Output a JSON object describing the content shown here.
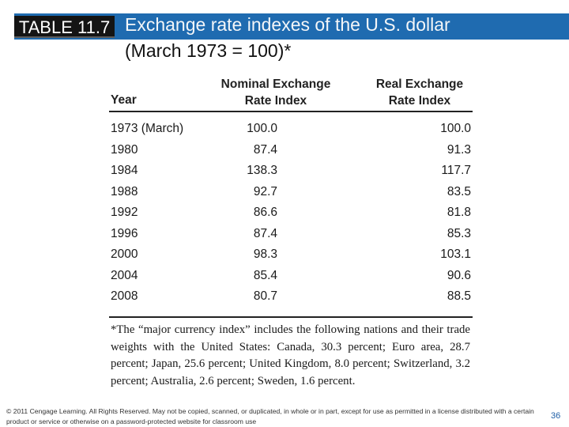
{
  "slide": {
    "table_label": "TABLE 11.7",
    "title_line1": "Exchange rate indexes of the U.S. dollar",
    "title_line2": "(March 1973 = 100)*"
  },
  "table": {
    "headers": {
      "year": "Year",
      "nominal_line1": "Nominal Exchange",
      "nominal_line2": "Rate Index",
      "real_line1": "Real Exchange",
      "real_line2": "Rate Index"
    },
    "rows": [
      {
        "year": "1973 (March)",
        "nominal": "100.0",
        "real": "100.0"
      },
      {
        "year": "1980",
        "nominal": "87.4",
        "real": "91.3"
      },
      {
        "year": "1984",
        "nominal": "138.3",
        "real": "117.7"
      },
      {
        "year": "1988",
        "nominal": "92.7",
        "real": "83.5"
      },
      {
        "year": "1992",
        "nominal": "86.6",
        "real": "81.8"
      },
      {
        "year": "1996",
        "nominal": "87.4",
        "real": "85.3"
      },
      {
        "year": "2000",
        "nominal": "98.3",
        "real": "103.1"
      },
      {
        "year": "2004",
        "nominal": "85.4",
        "real": "90.6"
      },
      {
        "year": "2008",
        "nominal": "80.7",
        "real": "88.5"
      }
    ],
    "footnote": "*The “major currency index” includes the following nations and their trade weights with the United States: Canada, 30.3 percent; Euro area, 28.7 percent; Japan, 25.6 percent; United Kingdom, 8.0 percent; Switzerland, 3.2 percent; Australia, 2.6 percent; Sweden, 1.6 percent."
  },
  "footer": {
    "copyright": "© 2011 Cengage Learning. All Rights Reserved. May not be copied, scanned, or duplicated, in whole or in part, except for use as permitted in a license distributed with a certain product or service or otherwise on a password-protected website for classroom use",
    "page_number": "36"
  },
  "colors": {
    "header_band": "#1f6bb0",
    "label_background": "#141414",
    "page_number": "#1f5fa6"
  }
}
